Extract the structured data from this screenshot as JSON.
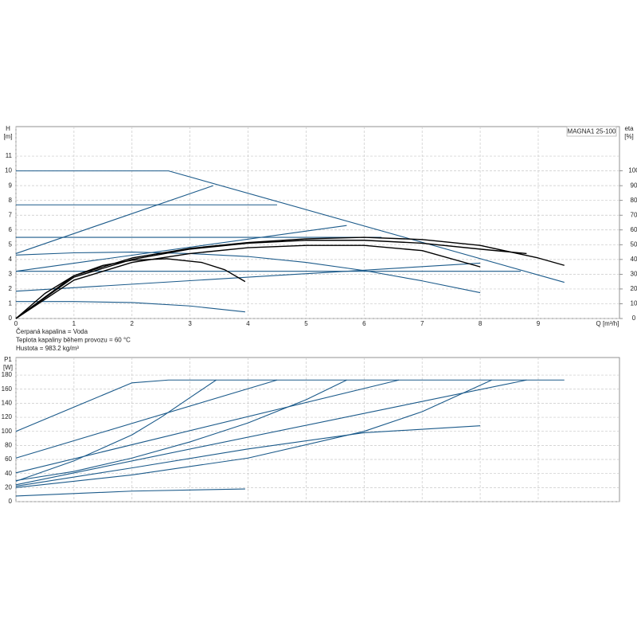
{
  "chart_data": [
    {
      "type": "line",
      "title": "MAGNA1 25-100",
      "ylabel": "H",
      "yunit": "[m]",
      "y2label": "eta",
      "y2unit": "[%]",
      "xlabel": "Q [m³/h]",
      "annotations": [
        "Čerpaná kapalina = Voda",
        "Teplota kapaliny během provozu = 60 °C",
        "Hustota = 983.2 kg/m³"
      ],
      "xlim": [
        0,
        10.4
      ],
      "xticks": [
        0,
        1,
        2,
        3,
        4,
        5,
        6,
        7,
        8,
        9
      ],
      "ylim": [
        0,
        13
      ],
      "yticks": [
        0,
        1,
        2,
        3,
        4,
        5,
        6,
        7,
        8,
        9,
        10,
        11
      ],
      "y2lim": [
        0,
        130
      ],
      "y2ticks": [
        0,
        10,
        20,
        30,
        40,
        50,
        60,
        70,
        80,
        90,
        100
      ],
      "grid": true,
      "series": [
        {
          "color": "#1b5a8a",
          "x": [
            0,
            2.63,
            9.45
          ],
          "values": [
            10,
            10,
            2.45
          ]
        },
        {
          "color": "#1b5a8a",
          "x": [
            0,
            4.5
          ],
          "values": [
            7.7,
            7.7
          ]
        },
        {
          "color": "#1b5a8a",
          "x": [
            0,
            6.3
          ],
          "values": [
            5.5,
            5.5
          ]
        },
        {
          "color": "#1b5a8a",
          "x": [
            0,
            8.7
          ],
          "values": [
            3.2,
            3.2
          ]
        },
        {
          "color": "#1b5a8a",
          "x": [
            0,
            3.4
          ],
          "values": [
            4.4,
            9.0
          ]
        },
        {
          "color": "#1b5a8a",
          "x": [
            0,
            5.7
          ],
          "values": [
            3.2,
            6.3
          ]
        },
        {
          "color": "#1b5a8a",
          "x": [
            0,
            8.0
          ],
          "values": [
            1.85,
            3.75
          ]
        },
        {
          "color": "#1b5a8a",
          "x": [
            0,
            1,
            2,
            3,
            4,
            5,
            6,
            7,
            8
          ],
          "values": [
            4.3,
            4.45,
            4.5,
            4.4,
            4.2,
            3.8,
            3.25,
            2.55,
            1.75
          ]
        },
        {
          "color": "#1b5a8a",
          "x": [
            0,
            1,
            2,
            3,
            3.95
          ],
          "values": [
            1.15,
            1.15,
            1.08,
            0.85,
            0.45
          ]
        },
        {
          "color": "#000000",
          "axis": "y2",
          "x": [
            0,
            0.5,
            1,
            1.5,
            2,
            2.6,
            3.2,
            3.6,
            3.95
          ],
          "values": [
            0,
            17,
            29,
            36,
            39.5,
            40.5,
            38,
            33,
            25
          ]
        },
        {
          "color": "#000000",
          "axis": "y2",
          "x": [
            0,
            1,
            2,
            3,
            4,
            5,
            6,
            7,
            8
          ],
          "values": [
            0,
            26,
            38,
            44,
            48,
            49.5,
            49.5,
            46,
            35
          ]
        },
        {
          "color": "#000000",
          "axis": "y2",
          "x": [
            0,
            1,
            2,
            3,
            4,
            5,
            6,
            7,
            8,
            8.8
          ],
          "values": [
            0,
            28,
            40,
            47,
            51,
            53,
            53,
            51,
            47,
            44
          ]
        },
        {
          "color": "#000000",
          "axis": "y2",
          "x": [
            0,
            1,
            2,
            3,
            4,
            5,
            6,
            7,
            8,
            9,
            9.45
          ],
          "values": [
            0,
            29,
            41,
            47.5,
            51.5,
            54,
            55,
            53.5,
            49.5,
            41,
            36
          ]
        }
      ]
    },
    {
      "type": "line",
      "ylabel": "P1",
      "yunit": "[W]",
      "xlim": [
        0,
        10.4
      ],
      "xticks": [
        0,
        1,
        2,
        3,
        4,
        5,
        6,
        7,
        8,
        9
      ],
      "ylim": [
        0,
        205
      ],
      "yticks": [
        0,
        20,
        40,
        60,
        80,
        100,
        120,
        140,
        160,
        180
      ],
      "grid": true,
      "series": [
        {
          "color": "#1b5a8a",
          "x": [
            0,
            2,
            2.63,
            9.45
          ],
          "values": [
            100,
            169,
            173,
            173
          ]
        },
        {
          "color": "#1b5a8a",
          "x": [
            0,
            1,
            2,
            2.5,
            3,
            3.45
          ],
          "values": [
            29,
            58,
            95,
            120,
            148,
            173
          ]
        },
        {
          "color": "#1b5a8a",
          "x": [
            0,
            4.5
          ],
          "values": [
            62,
            173
          ]
        },
        {
          "color": "#1b5a8a",
          "x": [
            0,
            1,
            2,
            3,
            4,
            5,
            5.7
          ],
          "values": [
            30,
            43,
            62,
            85,
            112,
            145,
            173
          ]
        },
        {
          "color": "#1b5a8a",
          "x": [
            0,
            6.6
          ],
          "values": [
            41,
            173
          ]
        },
        {
          "color": "#1b5a8a",
          "x": [
            0,
            2,
            4,
            6,
            7,
            8.2
          ],
          "values": [
            20,
            38,
            62,
            100,
            128,
            173
          ]
        },
        {
          "color": "#1b5a8a",
          "x": [
            0,
            8.8
          ],
          "values": [
            24,
            173
          ]
        },
        {
          "color": "#1b5a8a",
          "x": [
            0,
            2,
            4,
            6,
            8
          ],
          "values": [
            22,
            48,
            75,
            98,
            108
          ]
        },
        {
          "color": "#1b5a8a",
          "x": [
            0,
            2,
            3.95
          ],
          "values": [
            8,
            15,
            18
          ]
        }
      ]
    }
  ]
}
